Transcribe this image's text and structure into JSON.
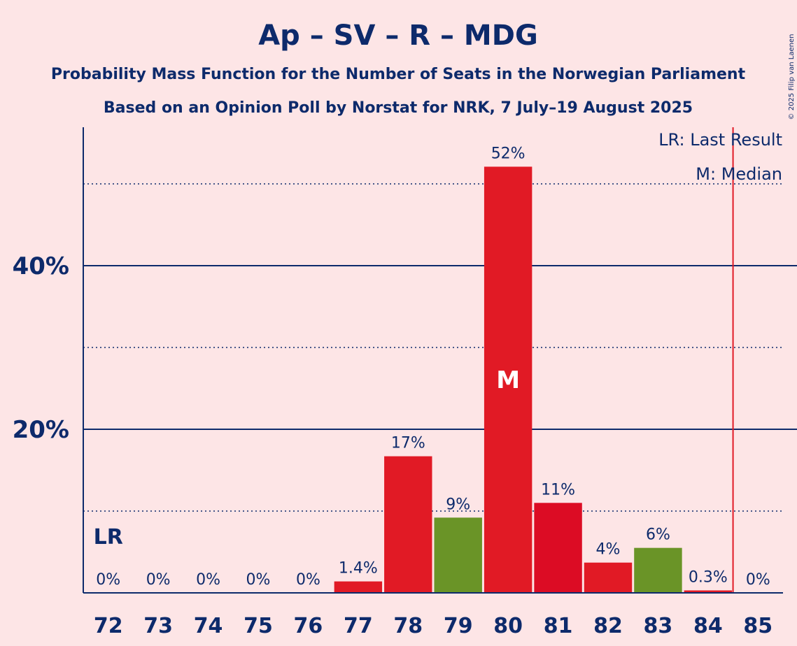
{
  "chart_data": {
    "type": "bar",
    "title": "Ap – SV – R – MDG",
    "subtitle_1": "Probability Mass Function for the Number of Seats in the Norwegian Parliament",
    "subtitle_2": "Based on an Opinion Poll by Norstat for NRK, 7 July–19 August 2025",
    "copyright": "© 2025 Filip van Laenen",
    "categories": [
      72,
      73,
      74,
      75,
      76,
      77,
      78,
      79,
      80,
      81,
      82,
      83,
      84,
      85
    ],
    "values": [
      0,
      0,
      0,
      0,
      0,
      1.4,
      16.7,
      9.2,
      52.1,
      11.0,
      3.7,
      5.5,
      0.3,
      0
    ],
    "value_labels": [
      "0%",
      "0%",
      "0%",
      "0%",
      "0%",
      "1.4%",
      "17%",
      "9%",
      "52%",
      "11%",
      "4%",
      "6%",
      "0.3%",
      "0%"
    ],
    "bar_colors": [
      "#e11a25",
      "#e11a25",
      "#e11a25",
      "#e11a25",
      "#e11a25",
      "#e11a25",
      "#e11a25",
      "#6a9427",
      "#e11a25",
      "#dc0c24",
      "#e11a25",
      "#6a9427",
      "#e11a25",
      "#e11a25"
    ],
    "ylim": [
      0,
      56
    ],
    "yticks_major": [
      20,
      40
    ],
    "ytick_labels": [
      "20%",
      "40%"
    ],
    "yticks_minor": [
      10,
      30,
      50
    ],
    "last_result": 72,
    "last_result_label": "LR",
    "median": 80,
    "median_label": "M",
    "majority_line_after": 84,
    "legend": [
      "LR: Last Result",
      "M: Median"
    ],
    "legend_position": "top-right",
    "grid": true,
    "colors": {
      "background": "#fde5e6",
      "text": "#0d2a6b",
      "majority_line": "#e11a25"
    }
  }
}
